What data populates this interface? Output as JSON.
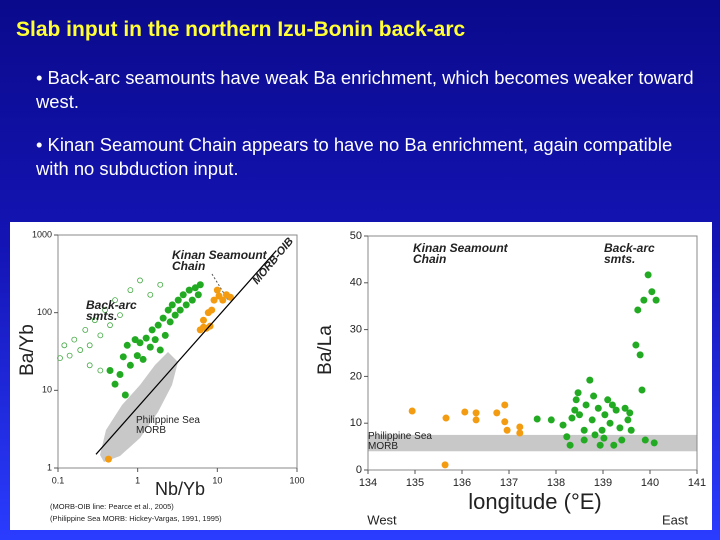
{
  "title": "Slab input in the northern Izu-Bonin back-arc",
  "bullets": [
    "• Back-arc seamounts have weak Ba enrichment, which becomes weaker toward west.",
    "• Kinan Seamount Chain appears to have no Ba enrichment, again compatible with no subduction input."
  ],
  "chart_data": [
    {
      "type": "scatter",
      "xlabel": "Nb/Yb",
      "ylabel": "Ba/Yb",
      "xscale": "log",
      "yscale": "log",
      "xlim": [
        0.1,
        100
      ],
      "ylim": [
        1,
        1000
      ],
      "xticks": [
        0.1,
        1,
        10,
        100
      ],
      "yticks": [
        1,
        10,
        100,
        1000
      ],
      "field_label": "Philippine Sea MORB",
      "notes": [
        "(MORB-OIB line: Pearce et al., 2005)",
        "(Philippine Sea MORB: Hickey-Vargas, 1991, 1995)"
      ],
      "series": [
        {
          "name": "Kinan Seamount Chain",
          "color": "#f39c12",
          "x": [
            0.43,
            6.1,
            6.7,
            7.3,
            8.1,
            7.7,
            8.5,
            9.1,
            10.5,
            11.7,
            13,
            14.6,
            6.7,
            10
          ],
          "values": [
            1.3,
            60,
            65,
            63,
            67,
            100,
            108,
            145,
            164,
            145,
            170,
            158,
            80,
            195
          ]
        },
        {
          "name": "Back-arc smts.",
          "color": "#22aa22",
          "x": [
            0.66,
            0.74,
            0.81,
            0.93,
            0.99,
            1.07,
            1.17,
            1.28,
            1.44,
            1.52,
            1.66,
            1.81,
            1.92,
            2.09,
            2.22,
            2.42,
            2.56,
            2.72,
            2.96,
            3.23,
            3.42,
            3.73,
            4.07,
            4.44,
            4.85,
            5.29,
            5.77,
            6.11,
            0.45,
            0.52,
            0.6,
            0.7
          ],
          "values": [
            27,
            38,
            21,
            45,
            28,
            41,
            25,
            47,
            36,
            60,
            45,
            69,
            33,
            85,
            51,
            108,
            76,
            126,
            93,
            145,
            108,
            170,
            126,
            195,
            145,
            209,
            170,
            229,
            18,
            12,
            16,
            8.7
          ]
        },
        {
          "color": "#44aa44",
          "marker": "open",
          "x": [
            0.106,
            0.12,
            0.14,
            0.16,
            0.19,
            0.22,
            0.25,
            0.29,
            0.34,
            0.39,
            0.45,
            0.52,
            0.6,
            0.25,
            0.34,
            0.81,
            1.07,
            1.44,
            1.92
          ],
          "values": [
            26,
            38,
            28,
            45,
            33,
            60,
            38,
            80,
            51,
            108,
            69,
            145,
            93,
            21,
            18,
            195,
            260,
            170,
            229
          ]
        },
        {
          "name": "MORB-OIB",
          "type": "line",
          "color": "#000000",
          "x": [
            0.3,
            55
          ],
          "values": [
            1.5,
            630
          ]
        }
      ]
    },
    {
      "type": "scatter",
      "xlabel": "longitude (°E)",
      "ylabel": "Ba/La",
      "xlim": [
        134,
        141
      ],
      "ylim": [
        0,
        50
      ],
      "xticks": [
        134,
        135,
        136,
        137,
        138,
        139,
        140,
        141
      ],
      "yticks": [
        0,
        10,
        20,
        30,
        40,
        50
      ],
      "band": {
        "label": "Philippine Sea MORB",
        "range": [
          4,
          7.5
        ],
        "color": "#c8c8c8"
      },
      "direction_labels": [
        "West",
        "East"
      ],
      "series": [
        {
          "name": "Kinan Seamount Chain",
          "color": "#f39c12",
          "x": [
            134.94,
            135.64,
            135.66,
            136.06,
            136.3,
            136.3,
            136.74,
            136.91,
            136.91,
            136.96,
            137.23,
            137.23
          ],
          "values": [
            12.6,
            1.1,
            11.1,
            12.4,
            12.2,
            10.7,
            12.2,
            13.9,
            10.3,
            8.5,
            9.2,
            7.9
          ]
        },
        {
          "name": "Back-arc smts.",
          "color": "#22aa22",
          "x": [
            137.6,
            137.9,
            138.15,
            138.23,
            138.3,
            138.34,
            138.4,
            138.43,
            138.47,
            138.5,
            138.6,
            138.6,
            138.64,
            138.72,
            138.77,
            138.8,
            138.83,
            138.9,
            138.94,
            138.98,
            139.02,
            139.04,
            139.1,
            139.15,
            139.2,
            139.23,
            139.28,
            139.36,
            139.4,
            139.47,
            139.53,
            139.57,
            139.6,
            139.7,
            139.74,
            139.79,
            139.83,
            139.87,
            139.9,
            139.96,
            140.04,
            140.13,
            140.09
          ],
          "values": [
            10.9,
            10.7,
            9.6,
            7.1,
            5.3,
            11.1,
            12.8,
            15,
            16.5,
            11.8,
            8.5,
            6.4,
            13.9,
            19.2,
            10.7,
            15.8,
            7.5,
            13.2,
            5.3,
            8.5,
            6.8,
            11.8,
            15,
            10,
            13.9,
            5.3,
            12.8,
            9,
            6.4,
            13.2,
            10.7,
            12.2,
            8.5,
            26.7,
            34.2,
            24.6,
            17.1,
            36.3,
            6.4,
            41.7,
            38.1,
            36.3,
            5.8
          ]
        }
      ]
    }
  ]
}
